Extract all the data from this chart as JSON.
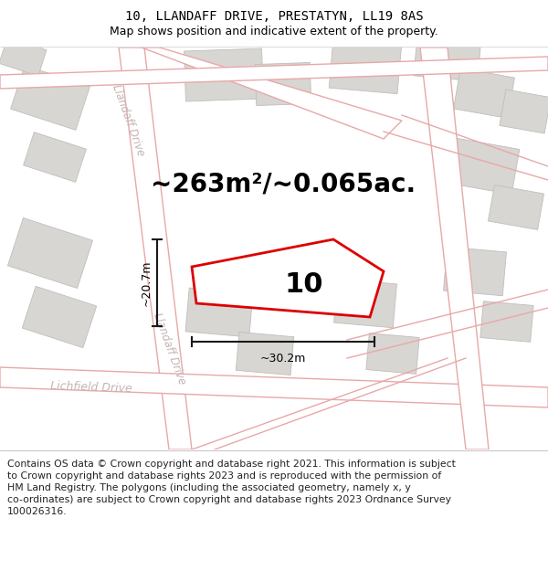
{
  "title": "10, LLANDAFF DRIVE, PRESTATYN, LL19 8AS",
  "subtitle": "Map shows position and indicative extent of the property.",
  "area_text": "~263m²/~0.065ac.",
  "property_number": "10",
  "width_label": "~30.2m",
  "height_label": "~20.7m",
  "road_label_llandaff_upper": "Llandaff Drive",
  "road_label_llandaff_lower": "Llandaff Drive",
  "road_label_lichfield": "Lichfield Drive",
  "copyright_text": "Contains OS data © Crown copyright and database right 2021. This information is subject\nto Crown copyright and database rights 2023 and is reproduced with the permission of\nHM Land Registry. The polygons (including the associated geometry, namely x, y\nco-ordinates) are subject to Crown copyright and database rights 2023 Ordnance Survey\n100026316.",
  "bg_color": "#ffffff",
  "map_bg": "#f0eeeb",
  "plot_color": "#dd0000",
  "road_line_color": "#e8a8a8",
  "road_fill_color": "#ffffff",
  "building_color": "#d8d6d3",
  "building_edge_color": "#c0bebb",
  "road_text_color": "#c4b4b4",
  "dim_line_color": "#1a1a1a",
  "title_fontsize": 10,
  "subtitle_fontsize": 9,
  "area_fontsize": 20,
  "property_num_fontsize": 22,
  "copyright_fontsize": 7.8,
  "title_font": "DejaVu Sans Mono",
  "body_font": "DejaVu Sans"
}
